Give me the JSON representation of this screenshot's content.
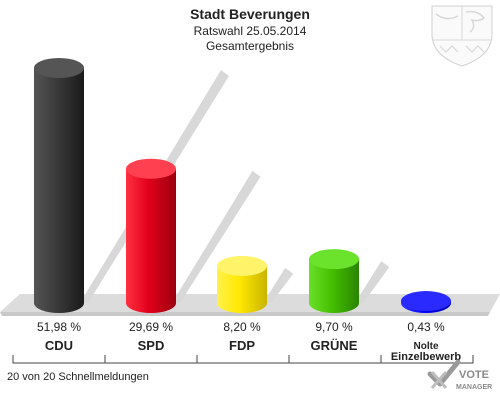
{
  "header": {
    "title": "Stadt Beverungen",
    "subtitle": "Ratswahl 25.05.2014",
    "subtitle2": "Gesamtergebnis"
  },
  "chart_data": {
    "type": "bar",
    "categories": [
      "CDU",
      "SPD",
      "FDP",
      "GRÜNE",
      "Nolte Einzelbewerb"
    ],
    "values": [
      51.98,
      29.69,
      8.2,
      9.7,
      0.43
    ],
    "value_labels": [
      "51,98 %",
      "29,69 %",
      "8,20 %",
      "9,70 %",
      "0,43 %"
    ],
    "colors": [
      "#3a3a3a",
      "#e2001a",
      "#ffe800",
      "#45c000",
      "#0000ff"
    ],
    "ylim": [
      0,
      55
    ],
    "grid": false,
    "legend": "none"
  },
  "labels": {
    "cat_0": "CDU",
    "cat_1": "SPD",
    "cat_2": "FDP",
    "cat_3": "GRÜNE",
    "cat_4_line1": "Nolte",
    "cat_4_line2": "Einzelbewerb"
  },
  "footer": {
    "status": "20 von 20 Schnellmeldungen",
    "brand_line1": "VOTE",
    "brand_line2": "MANAGER"
  },
  "icons": {
    "crest": "coat-of-arms-icon",
    "brand": "votemanager-logo-icon"
  }
}
